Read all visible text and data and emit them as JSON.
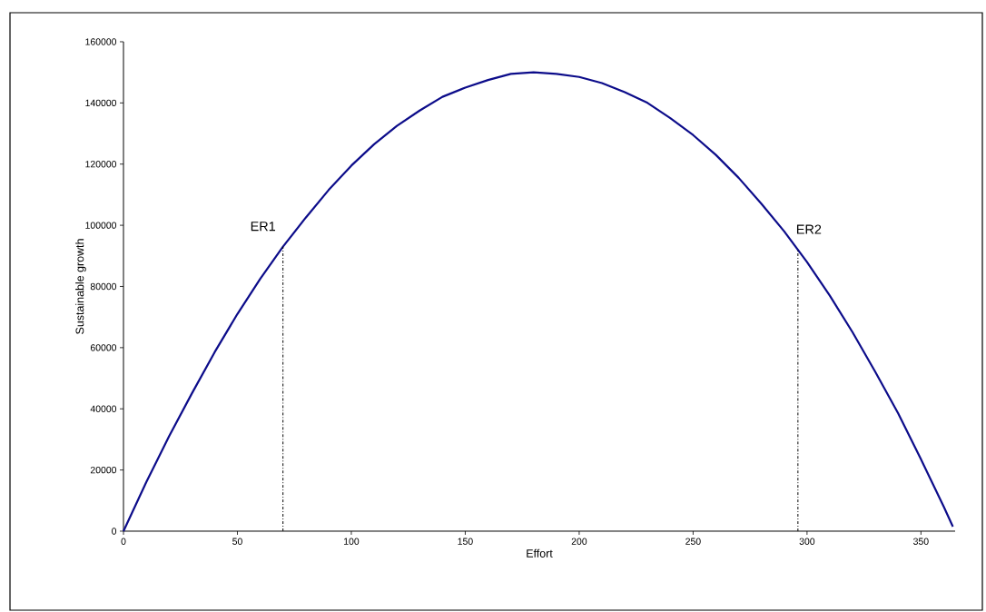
{
  "chart_data": {
    "type": "line",
    "xlabel": "Effort",
    "ylabel": "Sustainable growth",
    "xlim": [
      0,
      365
    ],
    "xticks": [
      0,
      50,
      100,
      150,
      200,
      250,
      300,
      350
    ],
    "ylim": [
      0,
      160000
    ],
    "yticks": [
      0,
      20000,
      40000,
      60000,
      80000,
      100000,
      120000,
      140000,
      160000
    ],
    "grid": false,
    "marker": "none",
    "line_style": "solid",
    "x": [
      0,
      10,
      20,
      30,
      40,
      50,
      60,
      70,
      80,
      90,
      100,
      110,
      120,
      130,
      140,
      150,
      160,
      170,
      180,
      190,
      200,
      210,
      220,
      230,
      240,
      250,
      260,
      270,
      280,
      290,
      300,
      310,
      320,
      330,
      340,
      350,
      360,
      364
    ],
    "series": [
      {
        "color": "#0c0c8a",
        "values": [
          0,
          16000,
          31000,
          45000,
          58500,
          71000,
          82500,
          93000,
          102500,
          111500,
          119500,
          126500,
          132500,
          137500,
          142000,
          145000,
          147500,
          149500,
          150000,
          149500,
          148500,
          146500,
          143500,
          140000,
          135000,
          129500,
          123000,
          115500,
          107000,
          98000,
          88000,
          77000,
          65000,
          52000,
          38500,
          23500,
          8000,
          1500
        ]
      }
    ],
    "ref_lines": [
      {
        "axis": "x",
        "value": 70,
        "color": "#000000",
        "line_style": "dashdot",
        "label": "ER1"
      },
      {
        "axis": "x",
        "value": 296,
        "color": "#000000",
        "line_style": "dashdot",
        "label": "ER2"
      }
    ]
  }
}
